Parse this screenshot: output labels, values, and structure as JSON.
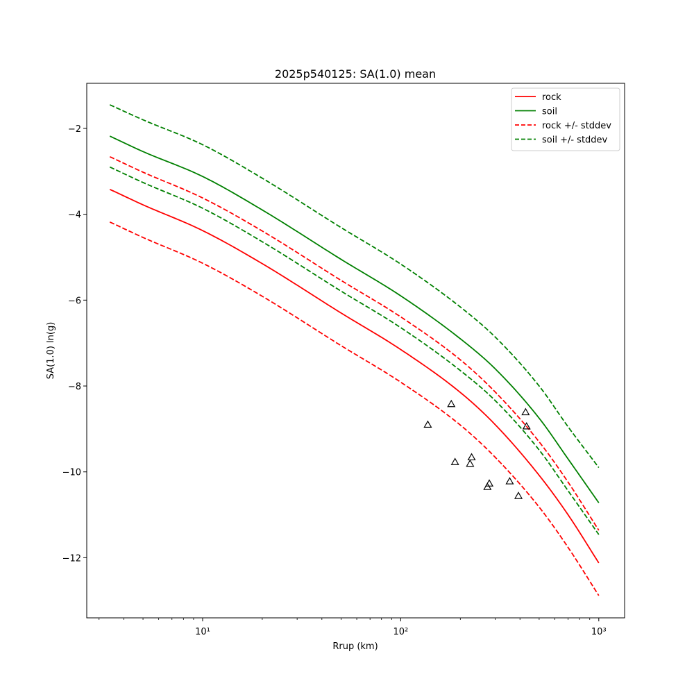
{
  "chart_data": {
    "type": "line",
    "title": "2025p540125: SA(1.0) mean",
    "xlabel": "Rrup (km)",
    "ylabel": "SA(1.0) ln(g)",
    "xscale": "log",
    "xlim": [
      2.6,
      1350
    ],
    "ylim": [
      -13.4,
      -0.95
    ],
    "x_ticks": [
      {
        "value": 10,
        "label": "10¹"
      },
      {
        "value": 100,
        "label": "10²"
      },
      {
        "value": 1000,
        "label": "10³"
      }
    ],
    "y_ticks": [
      {
        "value": -2,
        "label": "−2"
      },
      {
        "value": -4,
        "label": "−4"
      },
      {
        "value": -6,
        "label": "−6"
      },
      {
        "value": -8,
        "label": "−8"
      },
      {
        "value": -10,
        "label": "−10"
      },
      {
        "value": -12,
        "label": "−12"
      }
    ],
    "grid": false,
    "legend_position": "upper right",
    "colors": {
      "rock": "#ff0000",
      "soil": "#008000",
      "observed": "#000000"
    },
    "series": [
      {
        "name": "rock",
        "label": "rock",
        "color": "#ff0000",
        "style": "solid",
        "in_legend": true,
        "x": [
          3.4,
          5,
          10,
          20,
          50,
          100,
          200,
          300,
          500,
          700,
          1000
        ],
        "y": [
          -3.42,
          -3.78,
          -4.38,
          -5.15,
          -6.3,
          -7.15,
          -8.15,
          -8.9,
          -10.08,
          -11.0,
          -12.12
        ]
      },
      {
        "name": "soil",
        "label": "soil",
        "color": "#008000",
        "style": "solid",
        "in_legend": true,
        "x": [
          3.4,
          5,
          10,
          20,
          50,
          100,
          200,
          300,
          500,
          700,
          1000
        ],
        "y": [
          -2.18,
          -2.54,
          -3.12,
          -3.9,
          -5.05,
          -5.9,
          -6.9,
          -7.6,
          -8.75,
          -9.7,
          -10.72
        ]
      },
      {
        "name": "rock +/- stddev (upper)",
        "label": "rock +/- stddev",
        "color": "#ff0000",
        "style": "dashed",
        "in_legend": true,
        "x": [
          3.4,
          5,
          10,
          20,
          50,
          100,
          200,
          300,
          500,
          700,
          1000
        ],
        "y": [
          -2.66,
          -3.02,
          -3.62,
          -4.39,
          -5.54,
          -6.39,
          -7.39,
          -8.14,
          -9.3,
          -10.24,
          -11.36
        ]
      },
      {
        "name": "rock +/- stddev (lower)",
        "label": "rock +/- stddev",
        "color": "#ff0000",
        "style": "dashed",
        "in_legend": false,
        "x": [
          3.4,
          5,
          10,
          20,
          50,
          100,
          200,
          300,
          500,
          700,
          1000
        ],
        "y": [
          -4.18,
          -4.54,
          -5.14,
          -5.91,
          -7.06,
          -7.91,
          -8.91,
          -9.66,
          -10.82,
          -11.76,
          -12.88
        ]
      },
      {
        "name": "soil +/- stddev (upper)",
        "label": "soil +/- stddev",
        "color": "#008000",
        "style": "dashed",
        "in_legend": true,
        "x": [
          3.4,
          5,
          10,
          20,
          50,
          100,
          200,
          300,
          500,
          700,
          1000
        ],
        "y": [
          -1.45,
          -1.8,
          -2.38,
          -3.16,
          -4.31,
          -5.16,
          -6.16,
          -6.86,
          -8.0,
          -8.95,
          -9.9
        ]
      },
      {
        "name": "soil +/- stddev (lower)",
        "label": "soil +/- stddev",
        "color": "#008000",
        "style": "dashed",
        "in_legend": false,
        "x": [
          3.4,
          5,
          10,
          20,
          50,
          100,
          200,
          300,
          500,
          700,
          1000
        ],
        "y": [
          -2.9,
          -3.26,
          -3.86,
          -4.64,
          -5.79,
          -6.64,
          -7.64,
          -8.34,
          -9.49,
          -10.44,
          -11.46
        ]
      }
    ],
    "observed": {
      "marker": "triangle",
      "x": [
        137,
        180,
        188,
        224,
        228,
        274,
        280,
        355,
        393,
        427,
        432
      ],
      "y": [
        -8.9,
        -8.42,
        -9.77,
        -9.81,
        -9.66,
        -10.35,
        -10.27,
        -10.22,
        -10.56,
        -8.61,
        -8.94
      ]
    },
    "legend": [
      {
        "label": "rock",
        "color": "#ff0000",
        "style": "solid"
      },
      {
        "label": "soil",
        "color": "#008000",
        "style": "solid"
      },
      {
        "label": "rock +/- stddev",
        "color": "#ff0000",
        "style": "dashed"
      },
      {
        "label": "soil +/- stddev",
        "color": "#008000",
        "style": "dashed"
      }
    ]
  }
}
